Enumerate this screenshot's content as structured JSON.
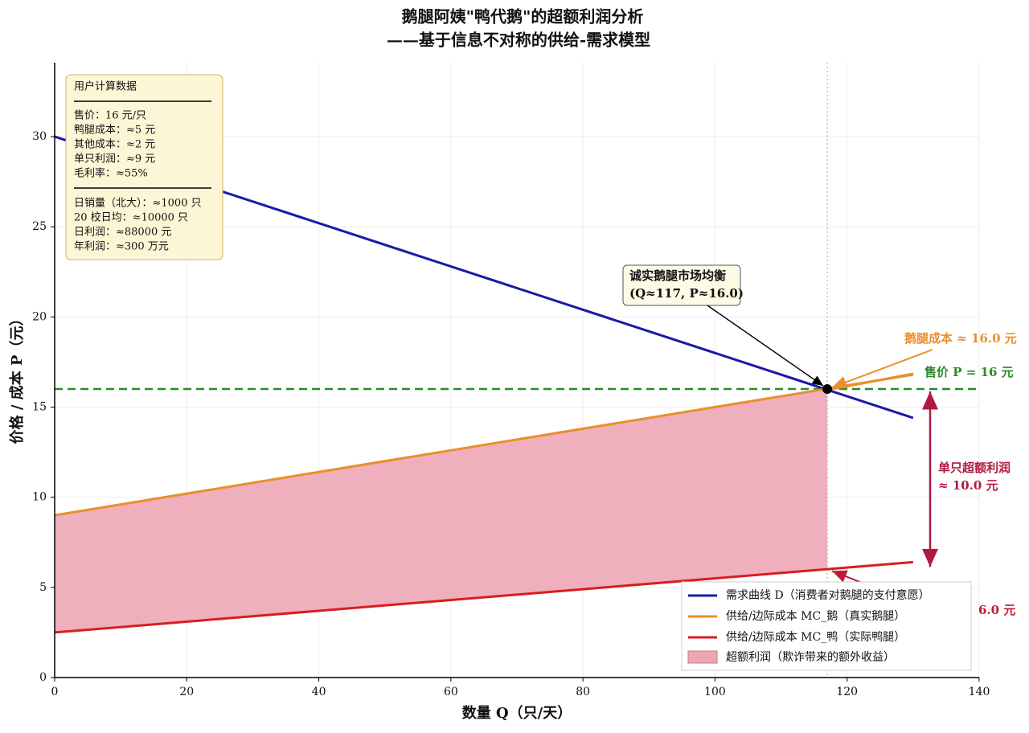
{
  "chart_data": {
    "type": "line",
    "title": "鹅腿阿姨\"鸭代鹅\"的超额利润分析",
    "subtitle": "——基于信息不对称的供给-需求模型",
    "xlabel": "数量 Q（只/天）",
    "ylabel": "价格 / 成本 P（元）",
    "xlim": [
      0,
      140
    ],
    "ylim": [
      0,
      34.1
    ],
    "xticks": [
      0,
      20,
      40,
      60,
      80,
      100,
      120,
      140
    ],
    "yticks": [
      0,
      5,
      10,
      15,
      20,
      25,
      30
    ],
    "grid": true,
    "series": [
      {
        "name": "需求曲线 D（消费者对鹅腿的支付意愿）",
        "color": "#1a1aa6",
        "x": [
          0,
          130
        ],
        "values": [
          30,
          14.4
        ]
      },
      {
        "name": "供给/边际成本 MC_鹅（真实鹅腿）",
        "color": "#e8902a",
        "x": [
          0,
          130
        ],
        "values": [
          9,
          16.8
        ]
      },
      {
        "name": "供给/边际成本 MC_鸭（实际鸭腿）",
        "color": "#d81e1e",
        "x": [
          0,
          130
        ],
        "values": [
          2.5,
          6.4
        ]
      }
    ],
    "fill": {
      "name": "超额利润（欺诈带来的额外收益）",
      "color": "#eea6b6",
      "x": [
        0,
        117
      ],
      "lower": [
        2.5,
        6.0
      ],
      "upper": [
        9,
        16
      ]
    },
    "hline": {
      "value": 16,
      "color": "#2a8a2a"
    },
    "vline": {
      "value": 117
    },
    "annotations": {
      "equilibrium": [
        "诚实鹅腿市场均衡",
        "(Q≈117, P≈16.0)"
      ],
      "goose_cost": "鹅腿成本 ≈ 16.0 元",
      "price": "售价 P = 16 元",
      "profit": [
        "单只超额利润",
        "≈ 10.0 元"
      ],
      "duck_cost": "6.0 元"
    },
    "info_box": {
      "title": "用户计算数据",
      "group1": [
        "售价：16 元/只",
        "鸭腿成本：≈5 元",
        "其他成本：≈2 元",
        "单只利润：≈9 元",
        "毛利率：≈55%"
      ],
      "group2": [
        "日销量（北大）：≈1000 只",
        "20 校日均：≈10000 只",
        "日利润：≈88000 元",
        "年利润：≈300 万元"
      ]
    }
  }
}
